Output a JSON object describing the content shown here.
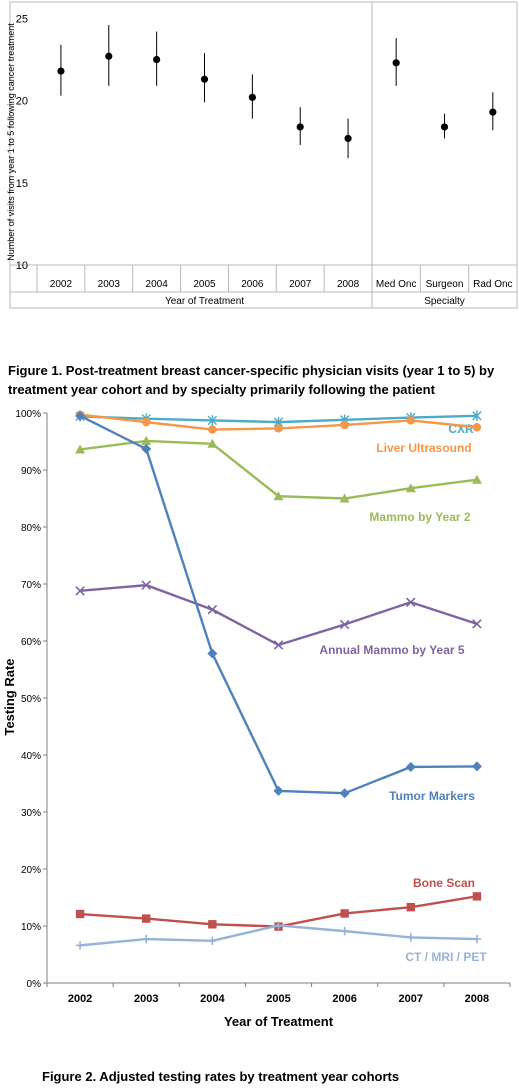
{
  "chart_data": [
    {
      "type": "scatter",
      "title": "",
      "ylabel": "Number of visits from year 1 to 5 following cancer treatment",
      "ylim": [
        10,
        26
      ],
      "yticks": [
        "10",
        "15",
        "20",
        "25"
      ],
      "grid": false,
      "groups": [
        {
          "label": "Year of Treatment",
          "categories": [
            "2002",
            "2003",
            "2004",
            "2005",
            "2006",
            "2007",
            "2008"
          ]
        },
        {
          "label": "Specialty",
          "categories": [
            "Med Onc",
            "Surgeon",
            "Rad Onc"
          ]
        }
      ],
      "series": [
        {
          "values": [
            21.8,
            22.7,
            22.5,
            21.3,
            20.2,
            18.4,
            17.7,
            22.3,
            18.4,
            19.3
          ],
          "lower": [
            20.3,
            20.9,
            20.9,
            19.9,
            18.9,
            17.3,
            16.5,
            20.9,
            17.7,
            18.2
          ],
          "upper": [
            23.4,
            24.6,
            24.2,
            22.9,
            21.6,
            19.6,
            18.9,
            23.8,
            19.2,
            20.5
          ]
        }
      ]
    },
    {
      "type": "line",
      "title": "",
      "xlabel": "Year of Treatment",
      "ylabel": "Testing Rate",
      "categories": [
        "2002",
        "2003",
        "2004",
        "2005",
        "2006",
        "2007",
        "2008"
      ],
      "ylim": [
        0,
        100
      ],
      "yticks": [
        "0%",
        "10%",
        "20%",
        "30%",
        "40%",
        "50%",
        "60%",
        "70%",
        "80%",
        "90%",
        "100%"
      ],
      "grid": false,
      "series": [
        {
          "name": "CXR",
          "color": "#4bacc6",
          "marker": "star",
          "values": [
            99.4,
            99.0,
            98.7,
            98.4,
            98.8,
            99.2,
            99.5
          ]
        },
        {
          "name": "Liver Ultrasound",
          "color": "#f79646",
          "marker": "circle",
          "values": [
            99.7,
            98.4,
            97.1,
            97.3,
            97.9,
            98.7,
            97.5
          ]
        },
        {
          "name": "Mammo by Year 2",
          "color": "#9bbb59",
          "marker": "triangle",
          "values": [
            93.6,
            95.1,
            94.6,
            85.4,
            85.0,
            86.8,
            88.3
          ]
        },
        {
          "name": "Annual Mammo by Year 5",
          "color": "#8064a2",
          "marker": "x",
          "values": [
            68.8,
            69.8,
            65.5,
            59.3,
            62.9,
            66.8,
            63.0
          ]
        },
        {
          "name": "Tumor Markers",
          "color": "#4f81bd",
          "marker": "diamond",
          "values": [
            99.5,
            93.7,
            57.8,
            33.7,
            33.3,
            37.9,
            38.0
          ]
        },
        {
          "name": "Bone Scan",
          "color": "#c0504d",
          "marker": "square",
          "values": [
            12.1,
            11.3,
            10.3,
            9.9,
            12.2,
            13.3,
            15.2
          ]
        },
        {
          "name": "CT / MRI / PET",
          "color": "#95b3d7",
          "marker": "plus",
          "values": [
            6.6,
            7.7,
            7.4,
            10.1,
            9.1,
            8.0,
            7.7
          ]
        }
      ]
    }
  ],
  "captions": {
    "figure1": "Figure 1. Post-treatment breast cancer-specific physician visits (year 1 to 5) by treatment year cohort and by specialty primarily following the patient",
    "figure2": "Figure 2. Adjusted testing rates by treatment year cohorts"
  }
}
